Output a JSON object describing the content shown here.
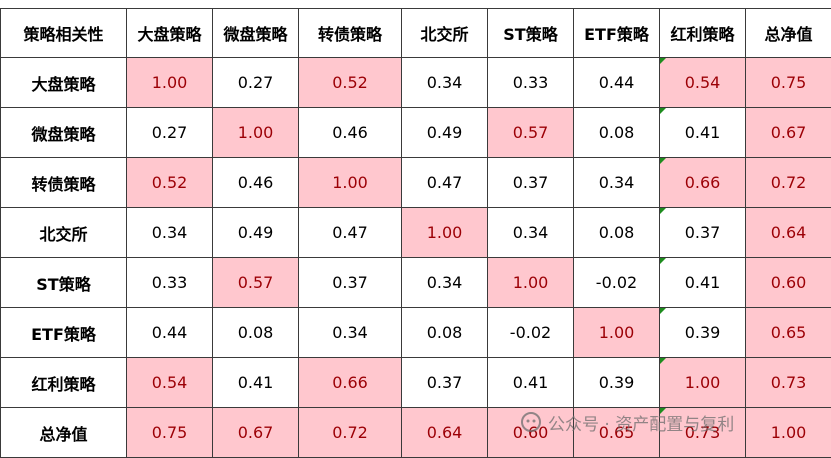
{
  "table": {
    "header": [
      "策略相关性",
      "大盘策略",
      "微盘策略",
      "转债策略",
      "北交所",
      "ST策略",
      "ETF策略",
      "红利策略",
      "总净值"
    ],
    "rows": [
      [
        "大盘策略",
        "1.00",
        "0.27",
        "0.52",
        "0.34",
        "0.33",
        "0.44",
        "0.54",
        "0.75"
      ],
      [
        "微盘策略",
        "0.27",
        "1.00",
        "0.46",
        "0.49",
        "0.57",
        "0.08",
        "0.41",
        "0.67"
      ],
      [
        "转债策略",
        "0.52",
        "0.46",
        "1.00",
        "0.47",
        "0.37",
        "0.34",
        "0.66",
        "0.72"
      ],
      [
        "北交所",
        "0.34",
        "0.49",
        "0.47",
        "1.00",
        "0.34",
        "0.08",
        "0.37",
        "0.64"
      ],
      [
        "ST策略",
        "0.33",
        "0.57",
        "0.37",
        "0.34",
        "1.00",
        "-0.02",
        "0.41",
        "0.60"
      ],
      [
        "ETF策略",
        "0.44",
        "0.08",
        "0.34",
        "0.08",
        "-0.02",
        "1.00",
        "0.39",
        "0.65"
      ],
      [
        "红利策略",
        "0.54",
        "0.41",
        "0.66",
        "0.37",
        "0.41",
        "0.39",
        "1.00",
        "0.73"
      ],
      [
        "总净值",
        "0.75",
        "0.67",
        "0.72",
        "0.64",
        "0.60",
        "0.65",
        "0.73",
        "1.00"
      ]
    ],
    "highlight": [
      [
        true,
        false,
        true,
        false,
        false,
        false,
        true,
        true
      ],
      [
        false,
        true,
        false,
        false,
        true,
        false,
        false,
        true
      ],
      [
        true,
        false,
        true,
        false,
        false,
        false,
        true,
        true
      ],
      [
        false,
        false,
        false,
        true,
        false,
        false,
        false,
        true
      ],
      [
        false,
        true,
        false,
        false,
        true,
        false,
        false,
        true
      ],
      [
        false,
        false,
        false,
        false,
        false,
        true,
        false,
        true
      ],
      [
        true,
        false,
        true,
        false,
        false,
        false,
        true,
        true
      ],
      [
        true,
        true,
        true,
        true,
        true,
        true,
        true,
        true
      ]
    ],
    "highlight_color": "#ffc7ce",
    "highlight_text_color": "#9c0006"
  },
  "watermark": "公众号 · 资产配置与复利"
}
